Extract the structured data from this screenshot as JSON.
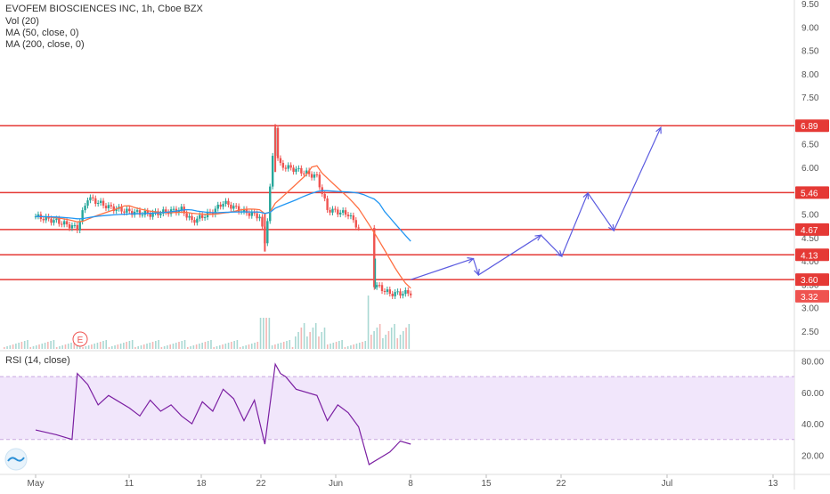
{
  "header": {
    "symbol_line": "EVOFEM BIOSCIENCES INC, 1h, Cboe BZX",
    "indicators": [
      "Vol (20)",
      "MA (50, close, 0)",
      "MA (200, close, 0)"
    ],
    "rsi_label": "RSI (14, close)",
    "earnings_marker": "E"
  },
  "colors": {
    "level_line": "#e53935",
    "label_bg": "#e53935",
    "candle_up": "#26a69a",
    "candle_down": "#ef5350",
    "ma50": "#2196f3",
    "ma200": "#ff7043",
    "projection": "#5c5ce0",
    "rsi_line": "#7b1fa2",
    "rsi_band": "#f1e6fb",
    "grid": "#eeeeee"
  },
  "chart_data": [
    {
      "type": "candlestick",
      "title": "EVOFEM BIOSCIENCES INC, 1h, Cboe BZX",
      "x_ticks": [
        "May",
        "11",
        "18",
        "22",
        "Jun",
        "8",
        "15",
        "22",
        "Jul",
        "13"
      ],
      "price_ticks": [
        "9.50",
        "9.00",
        "8.50",
        "8.00",
        "7.50",
        "6.50",
        "6.00",
        "5.00",
        "4.50",
        "4.00",
        "3.50",
        "3.00",
        "2.50"
      ],
      "ylim": [
        2.2,
        9.5
      ],
      "horizontal_levels": [
        {
          "label": "6.89",
          "value": 6.89
        },
        {
          "label": "5.46",
          "value": 5.46
        },
        {
          "label": "4.67",
          "value": 4.67
        },
        {
          "label": "4.13",
          "value": 4.13
        },
        {
          "label": "3.60",
          "value": 3.6
        }
      ],
      "last_price_label": "3.32",
      "last_price": 3.32,
      "price_path": [
        {
          "x": 0,
          "price": 4.95
        },
        {
          "x": 2,
          "price": 4.85
        },
        {
          "x": 4,
          "price": 4.7
        },
        {
          "x": 5,
          "price": 5.35
        },
        {
          "x": 7,
          "price": 5.15
        },
        {
          "x": 9,
          "price": 5.05
        },
        {
          "x": 11,
          "price": 5.0
        },
        {
          "x": 14,
          "price": 5.1
        },
        {
          "x": 15,
          "price": 4.85
        },
        {
          "x": 17,
          "price": 5.05
        },
        {
          "x": 18,
          "price": 5.25
        },
        {
          "x": 20,
          "price": 5.05
        },
        {
          "x": 21.5,
          "price": 4.95
        },
        {
          "x": 22,
          "price": 4.4
        },
        {
          "x": 22.3,
          "price": 5.0
        },
        {
          "x": 23,
          "price": 6.9
        },
        {
          "x": 23.3,
          "price": 6.05
        },
        {
          "x": 25,
          "price": 5.95
        },
        {
          "x": 27,
          "price": 5.8
        },
        {
          "x": 28,
          "price": 5.1
        },
        {
          "x": 30,
          "price": 5.0
        },
        {
          "x": 31,
          "price": 4.7
        },
        {
          "x": 32.5,
          "price": 3.5
        },
        {
          "x": 34,
          "price": 3.3
        },
        {
          "x": 36,
          "price": 3.32
        }
      ],
      "projection_path": [
        {
          "x": 36,
          "price": 3.6
        },
        {
          "x": 42,
          "price": 4.05
        },
        {
          "x": 42.5,
          "price": 3.7
        },
        {
          "x": 48.5,
          "price": 4.55
        },
        {
          "x": 50.5,
          "price": 4.1
        },
        {
          "x": 53,
          "price": 5.45
        },
        {
          "x": 55.5,
          "price": 4.65
        },
        {
          "x": 60,
          "price": 6.85
        }
      ]
    },
    {
      "type": "line",
      "title": "RSI (14, close)",
      "y_ticks": [
        "80.00",
        "60.00",
        "40.00",
        "20.00"
      ],
      "ylim": [
        10,
        82
      ],
      "band": [
        30,
        70
      ],
      "x": [
        0,
        2,
        3.5,
        4,
        5,
        6,
        7,
        9,
        10,
        11,
        12,
        13,
        14,
        15,
        16,
        17,
        18,
        19,
        20,
        21,
        22,
        23,
        23.5,
        24,
        25,
        27,
        28,
        29,
        30,
        31,
        32,
        34,
        35,
        36
      ],
      "values": [
        36,
        33,
        30,
        72,
        65,
        52,
        58,
        50,
        45,
        55,
        48,
        52,
        45,
        40,
        54,
        48,
        62,
        56,
        42,
        55,
        27,
        78,
        72,
        70,
        62,
        58,
        42,
        52,
        47,
        38,
        14,
        22,
        29,
        27
      ]
    }
  ]
}
